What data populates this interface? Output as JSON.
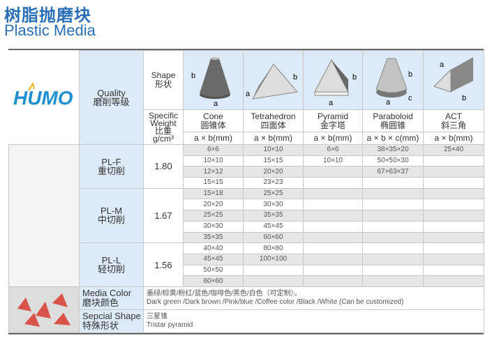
{
  "title_cn": "树脂抛磨块",
  "title_en": "Plastic Media",
  "logo_text": "HUMO",
  "header": {
    "quality": "Quality",
    "quality_cn": "磨削等级",
    "shape": "Shape",
    "shape_cn": "形状",
    "sw1": "Specific",
    "sw2": "Weight",
    "sw_cn": "比重",
    "sw_unit": "g/cm³"
  },
  "shapes": [
    {
      "name": "Cone",
      "cn": "圆锥体",
      "unit": "a × b(mm)"
    },
    {
      "name": "Tetrahedron",
      "cn": "四面体",
      "unit": "a × b(mm)"
    },
    {
      "name": "Pyramid",
      "cn": "金字塔",
      "unit": "a × b(mm)"
    },
    {
      "name": "Paraboloid",
      "cn": "椭圆锥",
      "unit": "a × b × c(mm)"
    },
    {
      "name": "ACT",
      "cn": "斜三角",
      "unit": "a × b(mm)"
    }
  ],
  "grades": [
    {
      "code": "PL-F",
      "cn": "重切削",
      "weight": "1.80",
      "rows": 4
    },
    {
      "code": "PL-M",
      "cn": "中切削",
      "weight": "1.67",
      "rows": 5
    },
    {
      "code": "PL-L",
      "cn": "轻切削",
      "weight": "1.56",
      "rows": 4
    }
  ],
  "sizes": {
    "cone": [
      "6×6",
      "10×10",
      "12×12",
      "15×15",
      "15×18",
      "20×20",
      "25×25",
      "30×30",
      "35×35",
      "40×40",
      "45×45",
      "50×50",
      "60×60"
    ],
    "tetrahedron": [
      "10×10",
      "15×15",
      "20×20",
      "23×23",
      "25×25",
      "30×30",
      "35×35",
      "45×45",
      "60×60",
      "80×80",
      "100×100",
      "",
      ""
    ],
    "pyramid": [
      "6×6",
      "10×10",
      "",
      "",
      "",
      "",
      "",
      "",
      "",
      "",
      "",
      "",
      ""
    ],
    "paraboloid": [
      "38×35×20",
      "50×50×30",
      "67×63×37",
      "",
      "",
      "",
      "",
      "",
      "",
      "",
      "",
      "",
      ""
    ],
    "act": [
      "25×40",
      "",
      "",
      "",
      "",
      "",
      "",
      "",
      "",
      "",
      "",
      "",
      ""
    ]
  },
  "media_color": {
    "label": "Media Color",
    "label_cn": "磨块颜色",
    "value_cn": "墨绿/棕黄/粉红/蓝色/咖啡色/黑色/白色（可定制）。",
    "value_en": "Dark green /Dark brown /Pink/blue /Coffee color /Black /White (Can be customized)"
  },
  "special_shape": {
    "label": "Sepcial Shape",
    "label_cn": "特殊形状",
    "value_cn": "三星锥",
    "value_en": "Tristar pyramid"
  },
  "colors": {
    "title": "#2a6fb5",
    "header_bg": "#dcebf7",
    "stripe": "#e6e6e6"
  },
  "swatches": [
    "#5a2a35",
    "#2ea36a",
    "#7fae3c",
    "#4dbb7a",
    "#e8d6a8",
    "#efe6d2",
    "#e06a78",
    "#6a2e3c",
    "#e8a080",
    "#d8b860",
    "#1a8ab0",
    "#e0d8d0"
  ]
}
